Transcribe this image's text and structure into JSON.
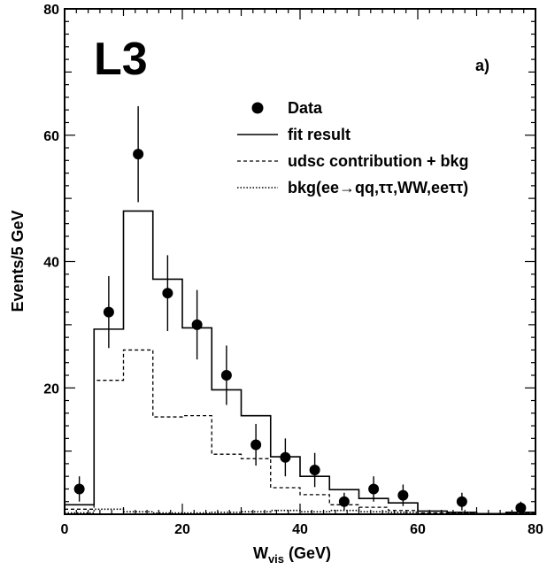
{
  "chart_data": {
    "type": "histogram",
    "logo": "L3",
    "panel_label": "a)",
    "xlabel": "W",
    "xlabel_sub": "vis",
    "xlabel_unit": " (GeV)",
    "ylabel": "Events/5 GeV",
    "xlim": [
      0,
      80
    ],
    "ylim": [
      0,
      80
    ],
    "xticks": [
      0,
      20,
      40,
      60,
      80
    ],
    "yticks": [
      20,
      40,
      60,
      80
    ],
    "bin_edges": [
      0,
      5,
      10,
      15,
      20,
      25,
      30,
      35,
      40,
      45,
      50,
      55,
      60,
      65,
      70,
      75,
      80
    ],
    "data_points": [
      {
        "x": 2.5,
        "y": 4,
        "err": 2
      },
      {
        "x": 7.5,
        "y": 32,
        "err": 5.7
      },
      {
        "x": 12.5,
        "y": 57,
        "err": 7.6
      },
      {
        "x": 17.5,
        "y": 35,
        "err": 6
      },
      {
        "x": 22.5,
        "y": 30,
        "err": 5.5
      },
      {
        "x": 27.5,
        "y": 22,
        "err": 4.7
      },
      {
        "x": 32.5,
        "y": 11,
        "err": 3.3
      },
      {
        "x": 37.5,
        "y": 9,
        "err": 3
      },
      {
        "x": 42.5,
        "y": 7,
        "err": 2.7
      },
      {
        "x": 47.5,
        "y": 2,
        "err": 1.4
      },
      {
        "x": 52.5,
        "y": 4,
        "err": 2
      },
      {
        "x": 57.5,
        "y": 3,
        "err": 1.7
      },
      {
        "x": 67.5,
        "y": 2,
        "err": 1.4
      },
      {
        "x": 77.5,
        "y": 1,
        "err": 1
      }
    ],
    "series": [
      {
        "name": "Data",
        "style": "points"
      },
      {
        "name": "fit result",
        "style": "solid",
        "values": [
          1.5,
          29.3,
          48,
          37.2,
          29.5,
          19.7,
          15.6,
          9.1,
          6,
          3.9,
          2.5,
          1.8,
          0.5,
          0.3,
          0.1,
          0.3
        ]
      },
      {
        "name": "udsc contribution + bkg",
        "style": "dashed",
        "values": [
          0.8,
          21.2,
          26,
          15.4,
          15.6,
          9.5,
          8.8,
          4.2,
          3.1,
          1.5,
          1.1,
          0.6,
          0.2,
          0.1,
          0.05,
          0.1
        ]
      },
      {
        "name": "bkg(ee→qq,ττ,WW,eeττ)",
        "style": "dotted",
        "values": [
          0.2,
          0.8,
          0.4,
          0.2,
          0.2,
          0.3,
          0.4,
          0.6,
          0.4,
          0.6,
          0.4,
          0.3,
          0.1,
          0.1,
          0.05,
          0.1
        ]
      }
    ],
    "legend_position": "top-right",
    "grid": false
  }
}
